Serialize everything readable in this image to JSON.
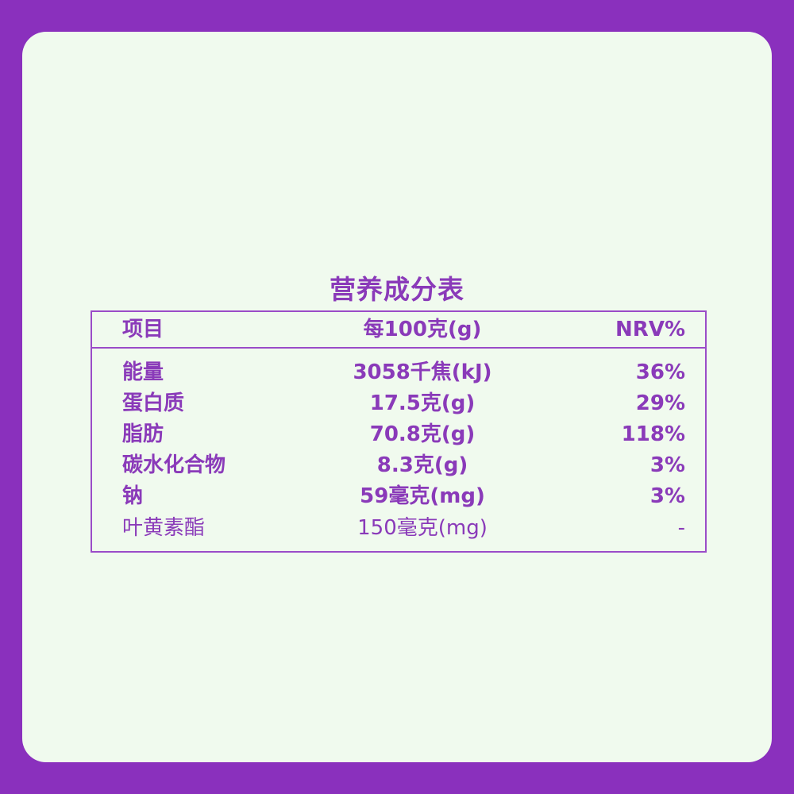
{
  "title": "营养成分表",
  "header": {
    "item": "项目",
    "per100": "每100克(g)",
    "nrv": "NRV%"
  },
  "rows": [
    {
      "item": "能量",
      "per100": "3058千焦(kJ)",
      "nrv": "36%"
    },
    {
      "item": "蛋白质",
      "per100": "17.5克(g)",
      "nrv": "29%"
    },
    {
      "item": "脂肪",
      "per100": "70.8克(g)",
      "nrv": "118%"
    },
    {
      "item": "碳水化合物",
      "per100": "8.3克(g)",
      "nrv": "3%"
    },
    {
      "item": "钠",
      "per100": "59毫克(mg)",
      "nrv": "3%"
    },
    {
      "item": "叶黄素酯",
      "per100": "150毫克(mg)",
      "nrv": "-"
    }
  ],
  "colors": {
    "frame": "#8a30bd",
    "background": "#f0faee",
    "text": "#8a3ab9"
  }
}
